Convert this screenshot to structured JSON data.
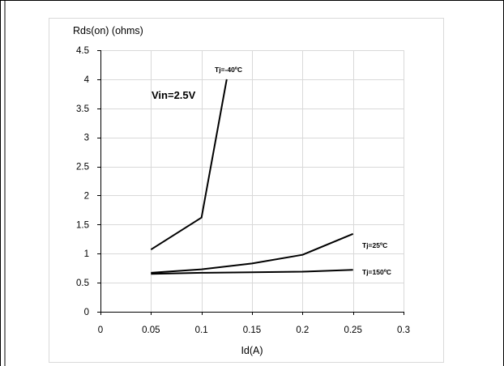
{
  "chart_data": {
    "type": "line",
    "ylabel": "Rds(on) (ohms)",
    "xlabel": "Id(A)",
    "xlim": [
      0,
      0.3
    ],
    "ylim": [
      0,
      4.5
    ],
    "xticks": [
      "0",
      "0.05",
      "0.1",
      "0.15",
      "0.2",
      "0.25",
      "0.3"
    ],
    "yticks": [
      "0",
      "0.5",
      "1",
      "1.5",
      "2",
      "2.5",
      "3",
      "3.5",
      "4",
      "4.5"
    ],
    "grid": true,
    "annotation": "Vin=2.5V",
    "series": [
      {
        "name": "Tj=-40ºC",
        "x": [
          0.05,
          0.1,
          0.125
        ],
        "y": [
          1.07,
          1.62,
          4.0
        ]
      },
      {
        "name": "Tj=25ºC",
        "x": [
          0.05,
          0.1,
          0.15,
          0.2,
          0.25
        ],
        "y": [
          0.67,
          0.73,
          0.83,
          0.98,
          1.34
        ]
      },
      {
        "name": "Tj=150ºC",
        "x": [
          0.05,
          0.1,
          0.15,
          0.2,
          0.25
        ],
        "y": [
          0.65,
          0.67,
          0.68,
          0.69,
          0.72
        ]
      }
    ]
  }
}
